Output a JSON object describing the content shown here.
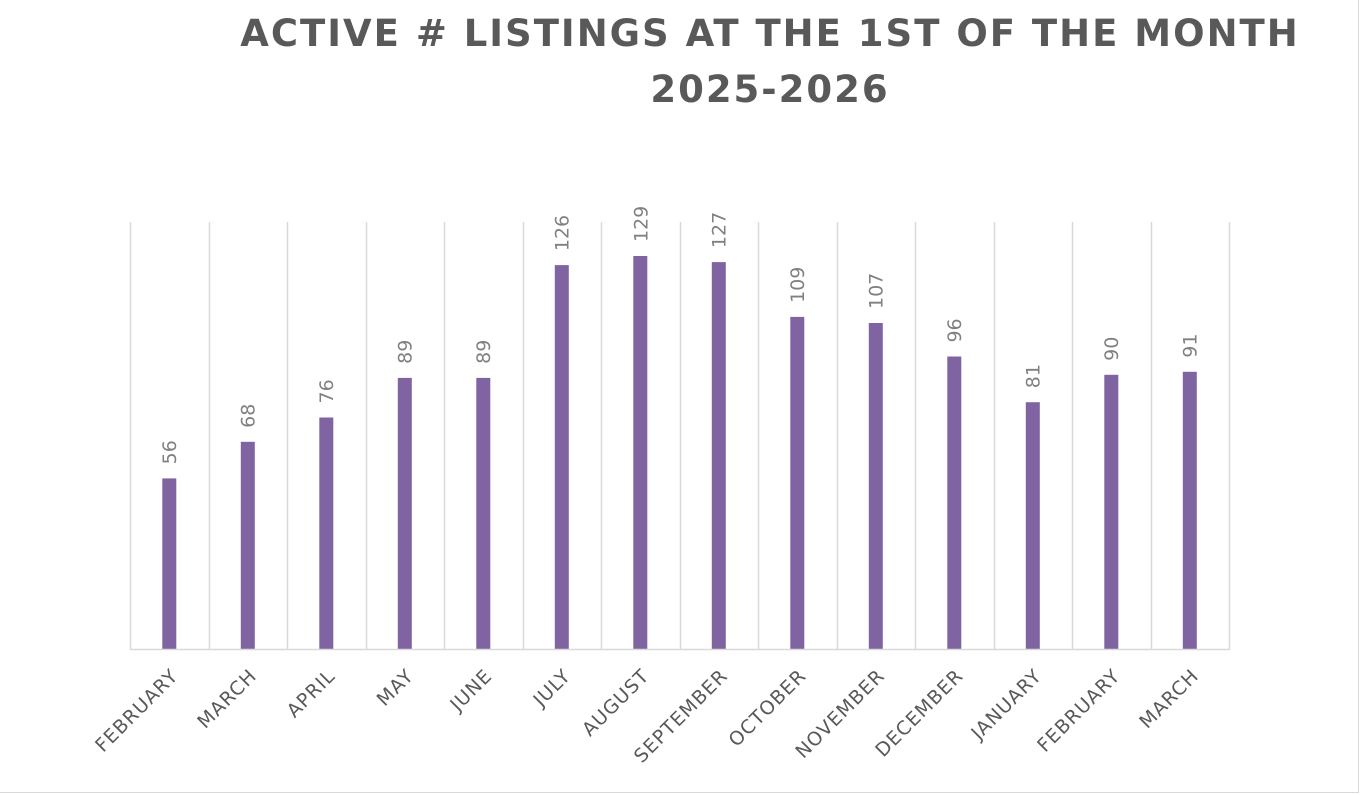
{
  "chart_data": {
    "type": "bar",
    "title_line1": "ACTIVE # LISTINGS AT THE 1ST OF THE MONTH",
    "title_line2": "2025-2026",
    "categories": [
      "FEBRUARY",
      "MARCH",
      "APRIL",
      "MAY",
      "JUNE",
      "JULY",
      "AUGUST",
      "SEPTEMBER",
      "OCTOBER",
      "NOVEMBER",
      "DECEMBER",
      "JANUARY",
      "FEBRUARY",
      "MARCH"
    ],
    "values": [
      56,
      68,
      76,
      89,
      89,
      126,
      129,
      127,
      109,
      107,
      96,
      81,
      90,
      91
    ],
    "ylim": [
      0,
      140
    ],
    "grid": true,
    "legend": false,
    "bar_color": "#8064a2",
    "grid_color": "#d9d9d9",
    "text_color": "#595959",
    "label_color": "#808080"
  }
}
